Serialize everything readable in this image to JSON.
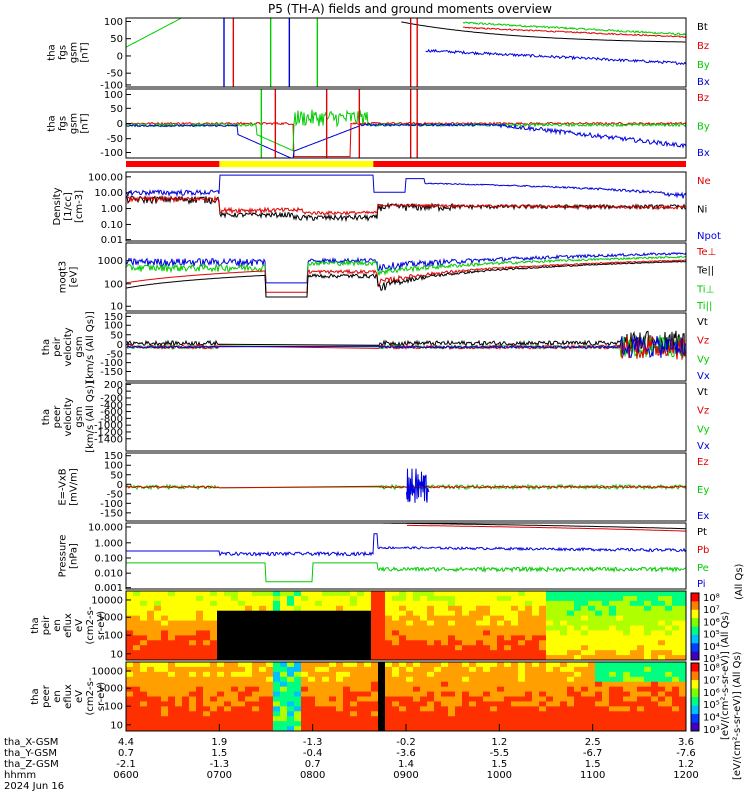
{
  "title": "P5 (TH-A) fields and ground moments overview",
  "date": "2024 Jun 16",
  "chart_data": [
    {
      "type": "line",
      "panel": "fgs-gsm",
      "ylabel": [
        "tha",
        "fgs",
        "gsm",
        "[nT]"
      ],
      "yticks": [
        "100",
        "50",
        "0",
        "-50",
        "-100"
      ],
      "ylim": [
        -100,
        100
      ],
      "legend": [
        {
          "label": "Bt",
          "color": "#000000"
        },
        {
          "label": "Bz",
          "color": "#e00000"
        },
        {
          "label": "By",
          "color": "#00cc00"
        },
        {
          "label": "Bx",
          "color": "#0000dd"
        }
      ]
    },
    {
      "type": "line",
      "panel": "fgs-gsm-zoom",
      "ylabel": [
        "tha",
        "fgs",
        "gsm",
        "[nT]"
      ],
      "yticks": [
        "100",
        "50",
        "0",
        "-50",
        "-100"
      ],
      "ylim": [
        -125,
        125
      ],
      "legend": [
        {
          "label": "Bz",
          "color": "#e00000"
        },
        {
          "label": "By",
          "color": "#00cc00"
        },
        {
          "label": "Bx",
          "color": "#0000dd"
        }
      ]
    },
    {
      "type": "line",
      "panel": "density",
      "ylabel": [
        "Density",
        "[1/cc]",
        "[cm-3]"
      ],
      "yticks": [
        "100.00",
        "10.00",
        "1.00",
        "0.10",
        "0.01"
      ],
      "log": true,
      "legend": [
        {
          "label": "Ne",
          "color": "#e00000"
        },
        {
          "label": "Ni",
          "color": "#000000"
        },
        {
          "label": "Npot",
          "color": "#0000dd"
        }
      ]
    },
    {
      "type": "line",
      "panel": "temperature",
      "ylabel": [
        "moqt3",
        "[eV]"
      ],
      "yticks": [
        "1000",
        "100",
        "10"
      ],
      "log": true,
      "legend": [
        {
          "label": "Te⊥",
          "color": "#e00000"
        },
        {
          "label": "Te||",
          "color": "#000000"
        },
        {
          "label": "Ti⊥",
          "color": "#00cc00"
        },
        {
          "label": "Ti||",
          "color": "#00cc00"
        }
      ]
    },
    {
      "type": "line",
      "panel": "peir-velocity",
      "ylabel": [
        "tha",
        "peir",
        "velocity",
        "gsm",
        "[km/s (All Qs)]"
      ],
      "yticks": [
        "150",
        "100",
        "50",
        "0",
        "-50",
        "-100",
        "-150"
      ],
      "ylim": [
        -180,
        180
      ],
      "legend": [
        {
          "label": "Vt",
          "color": "#000000"
        },
        {
          "label": "Vz",
          "color": "#e00000"
        },
        {
          "label": "Vy",
          "color": "#00cc00"
        },
        {
          "label": "Vx",
          "color": "#0000dd"
        }
      ]
    },
    {
      "type": "line",
      "panel": "peer-velocity",
      "ylabel": [
        "tha",
        "peer",
        "velocity",
        "gsm",
        "[km/s (All Qs)]"
      ],
      "yticks": [
        "200",
        "0",
        "-200",
        "-400",
        "-600",
        "-800",
        "-1000",
        "-1200",
        "-1400"
      ],
      "legend": [
        {
          "label": "Vt",
          "color": "#000000"
        },
        {
          "label": "Vz",
          "color": "#e00000"
        },
        {
          "label": "Vy",
          "color": "#00cc00"
        },
        {
          "label": "Vx",
          "color": "#0000dd"
        }
      ]
    },
    {
      "type": "line",
      "panel": "efield",
      "ylabel": [
        "E=-VxB",
        "[mV/m]"
      ],
      "yticks": [
        "150",
        "100",
        "50",
        "0",
        "-50",
        "-100",
        "-150"
      ],
      "ylim": [
        -160,
        160
      ],
      "legend": [
        {
          "label": "Ez",
          "color": "#e00000"
        },
        {
          "label": "Ey",
          "color": "#00cc00"
        },
        {
          "label": "Ex",
          "color": "#0000dd"
        }
      ]
    },
    {
      "type": "line",
      "panel": "pressure",
      "ylabel": [
        "Pressure",
        "[nPa]"
      ],
      "yticks": [
        "10.000",
        "1.000",
        "0.100",
        "0.010",
        "0.001"
      ],
      "log": true,
      "legend": [
        {
          "label": "Pt",
          "color": "#000000"
        },
        {
          "label": "Pb",
          "color": "#e00000"
        },
        {
          "label": "Pe",
          "color": "#00cc00"
        },
        {
          "label": "Pi",
          "color": "#0000dd"
        }
      ]
    },
    {
      "type": "heatmap",
      "panel": "peir-eflux",
      "ylabel": [
        "tha",
        "peir",
        "en",
        "eflux",
        "eV",
        "(cm2-s-",
        "sr-eV)"
      ],
      "yticks": [
        "10000",
        "1000",
        "100",
        "10"
      ]
    },
    {
      "type": "heatmap",
      "panel": "peer-eflux",
      "ylabel": [
        "tha",
        "peer",
        "en",
        "eflux",
        "eV",
        "(cm2-s-",
        "sr-eV)"
      ],
      "yticks": [
        "10000",
        "1000",
        "100",
        "10"
      ]
    }
  ],
  "colorbar": {
    "labels": [
      "10⁸",
      "10⁷",
      "10⁶",
      "10⁵",
      "10⁴",
      "10³"
    ],
    "title_right": "[eV/(cm²-s-sr-eV)] (All Qs)",
    "title_left": "[eV/(cm²-s-sr-eV)] (All Qs)"
  },
  "right_unit_label": "(All Qs)",
  "xaxis": {
    "row_labels": [
      "tha_X-GSM",
      "tha_Y-GSM",
      "tha_Z-GSM",
      "hhmm"
    ],
    "columns": [
      {
        "x": "4.4",
        "y": "0.7",
        "z": "-2.1",
        "t": "0600"
      },
      {
        "x": "1.9",
        "y": "1.5",
        "z": "-1.3",
        "t": "0700"
      },
      {
        "x": "-1.3",
        "y": "-0.4",
        "z": "0.7",
        "t": "0800"
      },
      {
        "x": "-0.2",
        "y": "-3.6",
        "z": "1.4",
        "t": "0900"
      },
      {
        "x": "1.2",
        "y": "-5.5",
        "z": "1.5",
        "t": "1000"
      },
      {
        "x": "2.5",
        "y": "-6.7",
        "z": "1.5",
        "t": "1100"
      },
      {
        "x": "3.6",
        "y": "-7.6",
        "z": "1.2",
        "t": "1200"
      }
    ]
  }
}
